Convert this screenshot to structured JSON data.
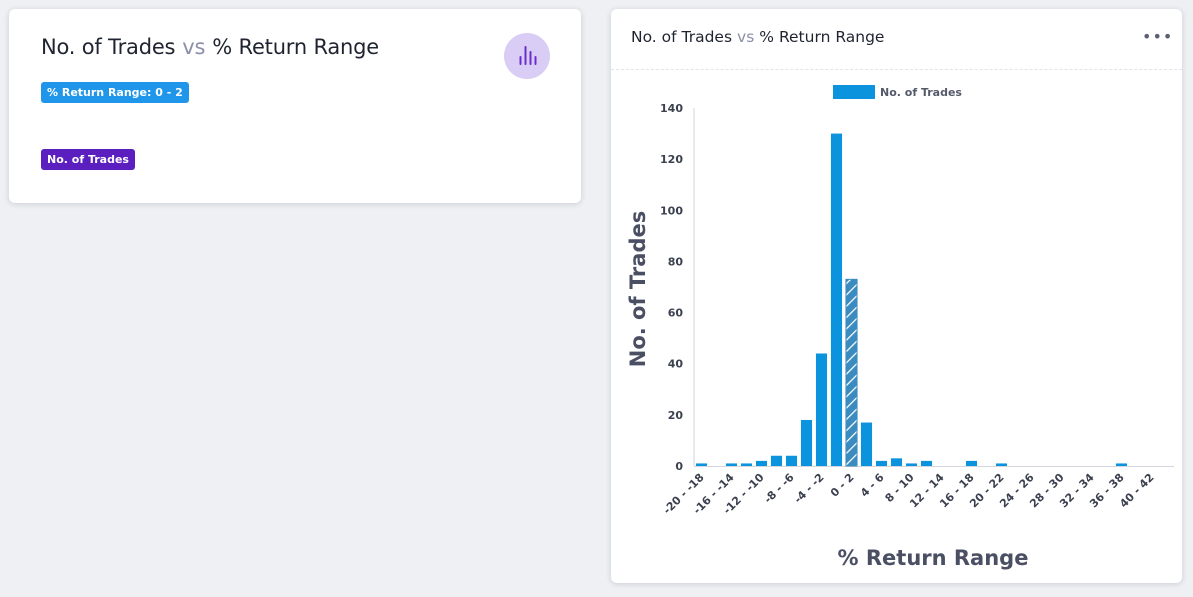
{
  "summary": {
    "title_left": "No. of Trades",
    "vs": "vs",
    "title_right": "% Return Range",
    "range_badge": "% Return Range: 0 - 2",
    "trades_badge": "No. of Trades",
    "icon": "bar-chart-icon"
  },
  "chart_card": {
    "title_left": "No. of Trades",
    "vs": "vs",
    "title_right": "% Return Range",
    "menu_icon": "more-horizontal-icon"
  },
  "colors": {
    "bar": "#0b93de",
    "selected_bar": "#3a8bbf",
    "badge_blue": "#1f96ea",
    "badge_purple": "#5b1fbf"
  },
  "chart_data": {
    "type": "bar",
    "title": "No. of Trades vs % Return Range",
    "xlabel": "% Return Range",
    "ylabel": "No. of Trades",
    "legend": [
      "No. of Trades"
    ],
    "legend_position": "top-center",
    "ylim": [
      0,
      140
    ],
    "yticks": [
      0,
      20,
      40,
      60,
      80,
      100,
      120,
      140
    ],
    "categories": [
      "-20 - -18",
      "-18 - -16",
      "-16 - -14",
      "-14 - -12",
      "-12 - -10",
      "-10 - -8",
      "-8 - -6",
      "-6 - -4",
      "-4 - -2",
      "-2 - 0",
      "0 - 2",
      "2 - 4",
      "4 - 6",
      "6 - 8",
      "8 - 10",
      "10 - 12",
      "12 - 14",
      "14 - 16",
      "16 - 18",
      "18 - 20",
      "20 - 22",
      "22 - 24",
      "24 - 26",
      "26 - 28",
      "28 - 30",
      "30 - 32",
      "32 - 34",
      "34 - 36",
      "36 - 38",
      "38 - 40",
      "40 - 42",
      "42 - 44"
    ],
    "values": [
      1,
      0,
      1,
      1,
      2,
      4,
      4,
      18,
      44,
      130,
      73,
      17,
      2,
      3,
      1,
      2,
      0,
      0,
      2,
      0,
      1,
      0,
      0,
      0,
      0,
      0,
      0,
      0,
      1,
      0,
      0,
      0
    ],
    "xtick_labels": [
      "-20 - -18",
      "-16 - -14",
      "-12 - -10",
      "-8 - -6",
      "-4 - -2",
      "0 - 2",
      "4 - 6",
      "8 - 10",
      "12 - 14",
      "16 - 18",
      "20 - 22",
      "24 - 26",
      "28 - 30",
      "32 - 34",
      "36 - 38",
      "40 - 42"
    ],
    "selected_category": "0 - 2"
  }
}
